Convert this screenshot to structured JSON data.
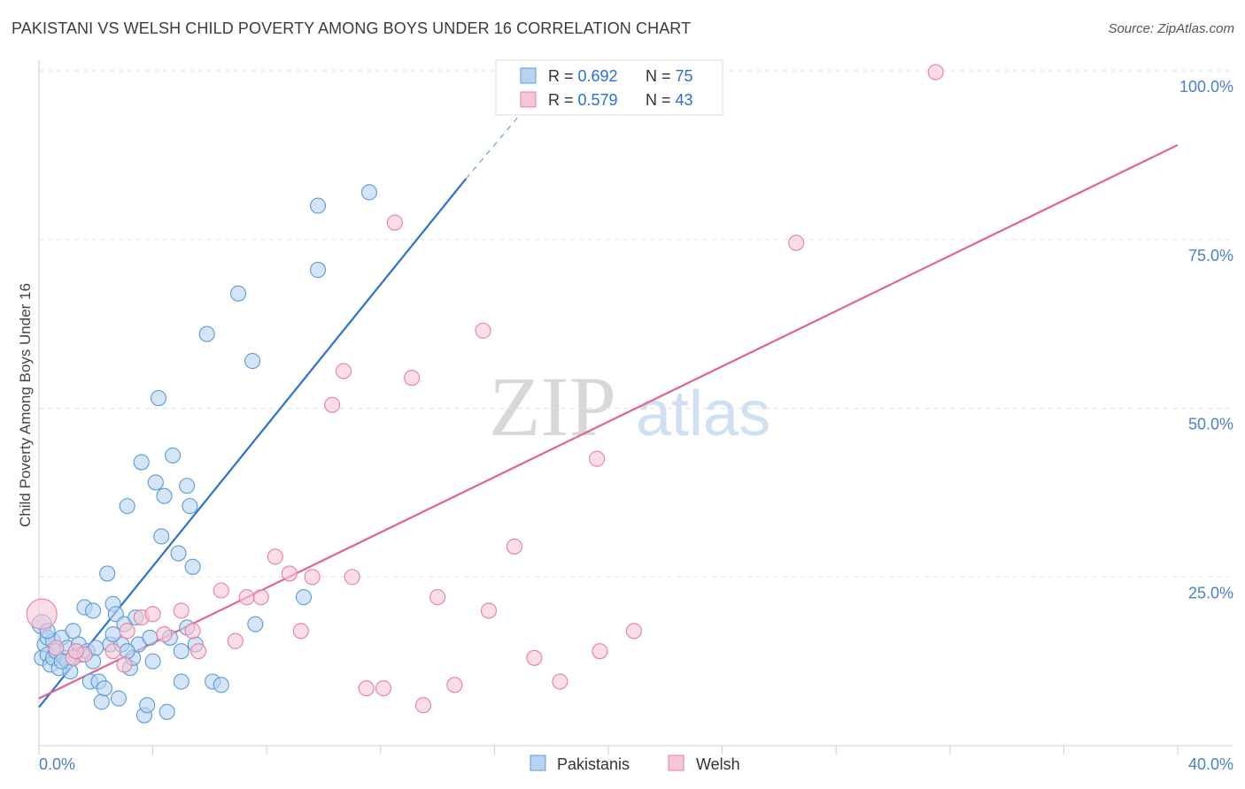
{
  "header": {
    "title": "PAKISTANI VS WELSH CHILD POVERTY AMONG BOYS UNDER 16 CORRELATION CHART",
    "source": "Source: ZipAtlas.com"
  },
  "watermark": {
    "part1": "ZIP",
    "part2": "atlas"
  },
  "colors": {
    "pakistani": "#5b9bd5",
    "pakistani_fill": "#b8d3f2",
    "pakistani_line": "#2b72d0",
    "welsh": "#e87fa0",
    "welsh_fill": "#f7c6d5",
    "welsh_line": "#e0648f",
    "tick_label": "#4a7fd0"
  },
  "legend": {
    "rows": [
      {
        "r_label": "R = ",
        "r_value": "0.692",
        "n_label": "N = ",
        "n_value": "75"
      },
      {
        "r_label": "R = ",
        "r_value": "0.579",
        "n_label": "N = ",
        "n_value": "43"
      }
    ],
    "bottom": [
      "Pakistanis",
      "Welsh"
    ]
  },
  "chart_data": {
    "type": "scatter",
    "title": "PAKISTANI VS WELSH CHILD POVERTY AMONG BOYS UNDER 16 CORRELATION CHART",
    "xlabel": "",
    "ylabel": "Child Poverty Among Boys Under 16",
    "xlim": [
      0,
      40
    ],
    "ylim": [
      0,
      100
    ],
    "x_tick_labels": [
      "0.0%",
      "40.0%"
    ],
    "y_tick_labels": [
      "25.0%",
      "50.0%",
      "75.0%",
      "100.0%"
    ],
    "y_ticks": [
      25,
      50,
      75,
      100
    ],
    "grid": true,
    "legend_position": "top-center",
    "series": [
      {
        "name": "Pakistanis",
        "r": 0.692,
        "n": 75,
        "trend": {
          "x": [
            0,
            15
          ],
          "y": [
            5.7,
            84
          ]
        },
        "trend_dashed": {
          "x": [
            15,
            18.6
          ],
          "y": [
            84,
            102
          ]
        },
        "points": [
          [
            0.1,
            18
          ],
          [
            0.1,
            13
          ],
          [
            0.2,
            15
          ],
          [
            0.3,
            13.5
          ],
          [
            0.3,
            16
          ],
          [
            0.4,
            12
          ],
          [
            0.5,
            13
          ],
          [
            0.5,
            15.5
          ],
          [
            0.6,
            14
          ],
          [
            0.7,
            11.5
          ],
          [
            0.8,
            16
          ],
          [
            0.9,
            13
          ],
          [
            1.0,
            14.5
          ],
          [
            1.0,
            12.5
          ],
          [
            1.1,
            11
          ],
          [
            1.2,
            17
          ],
          [
            1.3,
            14
          ],
          [
            1.4,
            15
          ],
          [
            1.5,
            13.5
          ],
          [
            1.6,
            20.5
          ],
          [
            1.7,
            14
          ],
          [
            1.8,
            9.5
          ],
          [
            1.9,
            12.5
          ],
          [
            2.0,
            14.5
          ],
          [
            2.1,
            9.5
          ],
          [
            2.2,
            6.5
          ],
          [
            2.3,
            8.5
          ],
          [
            2.4,
            25.5
          ],
          [
            2.5,
            15
          ],
          [
            2.6,
            21
          ],
          [
            2.7,
            19.5
          ],
          [
            2.8,
            7
          ],
          [
            2.9,
            15
          ],
          [
            3.0,
            18
          ],
          [
            3.1,
            35.5
          ],
          [
            3.2,
            11.5
          ],
          [
            3.3,
            13
          ],
          [
            3.4,
            19
          ],
          [
            3.5,
            15
          ],
          [
            3.6,
            42
          ],
          [
            3.7,
            4.5
          ],
          [
            3.8,
            6
          ],
          [
            3.9,
            16
          ],
          [
            4.0,
            12.5
          ],
          [
            4.1,
            39
          ],
          [
            4.2,
            51.5
          ],
          [
            4.3,
            31
          ],
          [
            4.4,
            37
          ],
          [
            4.5,
            5
          ],
          [
            4.7,
            43
          ],
          [
            4.9,
            28.5
          ],
          [
            5.0,
            9.5
          ],
          [
            5.2,
            38.5
          ],
          [
            5.3,
            35.5
          ],
          [
            5.4,
            26.5
          ],
          [
            5.5,
            15
          ],
          [
            5.2,
            17.5
          ],
          [
            5.9,
            61
          ],
          [
            6.1,
            9.5
          ],
          [
            6.4,
            9
          ],
          [
            7.0,
            67
          ],
          [
            7.5,
            57
          ],
          [
            7.6,
            18
          ],
          [
            9.3,
            22
          ],
          [
            9.8,
            80
          ],
          [
            9.8,
            70.5
          ],
          [
            11.6,
            82
          ],
          [
            0.3,
            17
          ],
          [
            0.8,
            12.5
          ],
          [
            1.2,
            13
          ],
          [
            1.9,
            20
          ],
          [
            2.6,
            16.5
          ],
          [
            3.1,
            14
          ],
          [
            4.6,
            16
          ],
          [
            5.0,
            14
          ]
        ]
      },
      {
        "name": "Welsh",
        "r": 0.579,
        "n": 43,
        "trend": {
          "x": [
            0,
            40
          ],
          "y": [
            7,
            89
          ]
        },
        "points": [
          [
            0.1,
            19.5
          ],
          [
            0.6,
            14.5
          ],
          [
            1.2,
            13
          ],
          [
            1.6,
            13.5
          ],
          [
            2.6,
            14
          ],
          [
            3.0,
            12
          ],
          [
            3.1,
            17
          ],
          [
            3.6,
            19
          ],
          [
            4.0,
            19.5
          ],
          [
            4.4,
            16.5
          ],
          [
            5.0,
            20
          ],
          [
            5.4,
            17
          ],
          [
            5.6,
            14
          ],
          [
            6.4,
            23
          ],
          [
            6.9,
            15.5
          ],
          [
            7.3,
            22
          ],
          [
            7.8,
            22
          ],
          [
            8.3,
            28
          ],
          [
            8.8,
            25.5
          ],
          [
            9.2,
            17
          ],
          [
            9.6,
            25
          ],
          [
            10.3,
            50.5
          ],
          [
            10.7,
            55.5
          ],
          [
            11.0,
            25
          ],
          [
            11.5,
            8.5
          ],
          [
            12.1,
            8.5
          ],
          [
            12.5,
            77.5
          ],
          [
            13.1,
            54.5
          ],
          [
            13.5,
            6
          ],
          [
            14.0,
            22
          ],
          [
            14.6,
            9
          ],
          [
            15.6,
            61.5
          ],
          [
            15.8,
            20
          ],
          [
            16.7,
            29.5
          ],
          [
            17.4,
            13
          ],
          [
            18.3,
            9.5
          ],
          [
            19.7,
            14
          ],
          [
            19.6,
            42.5
          ],
          [
            20.9,
            17
          ],
          [
            26.6,
            74.5
          ],
          [
            31.5,
            99.8
          ],
          [
            20.0,
            99.5
          ],
          [
            1.3,
            14
          ]
        ]
      }
    ]
  }
}
